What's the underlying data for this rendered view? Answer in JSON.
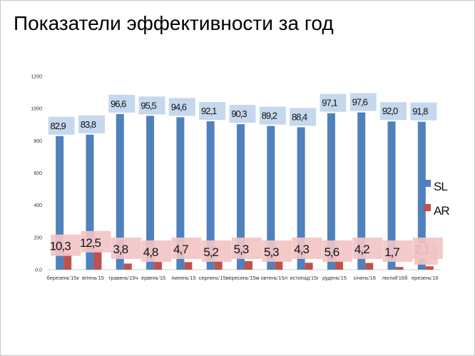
{
  "slide": {
    "title": "Показатели эффективности за год"
  },
  "chart_data": {
    "type": "bar",
    "categories": [
      "березень'15",
      "квітень'15",
      "травень'15",
      "червень'15",
      "липень'15",
      "серпень'15",
      "вересень'15",
      "жовтень'15",
      "листопад'15",
      "грудень'15",
      "січень'16",
      "лютий'16",
      "березень'16"
    ],
    "category_labels": [
      "березень'15к",
      "вітень'15",
      "травень'15ч",
      "ервень'15",
      "липень'15",
      "серпень'15в",
      "ересень'15ж",
      "овтень'15л",
      "истопад'15г",
      "рудень'15",
      "січень'16",
      "лютий'16б",
      "ерезень'16"
    ],
    "yticks": [
      "0,0",
      "200",
      "400",
      "600",
      "800",
      "1000",
      "1200"
    ],
    "ylim": [
      0,
      1200
    ],
    "legend_position": "right",
    "series": [
      {
        "name": "SL",
        "color": "#4f81bd",
        "label_bg": "#c5d8ee",
        "values": [
          829,
          838,
          966,
          955,
          946,
          921,
          903,
          892,
          884,
          971,
          976,
          920,
          918
        ],
        "labels": [
          "82,9",
          "83,8",
          "96,6",
          "95,5",
          "94,6",
          "92,1",
          "90,3",
          "89,2",
          "88,4",
          "97,1",
          "97,6",
          "92,0",
          "91,8"
        ]
      },
      {
        "name": "AR",
        "color": "#c0504d",
        "label_bg": "#f2c4c4",
        "values": [
          103,
          125,
          38,
          48,
          47,
          52,
          53,
          53,
          43,
          56,
          42,
          17,
          21
        ],
        "labels": [
          "10,3",
          "12,5",
          "3,8",
          "4,8",
          "4,7",
          "5,2",
          "5,3",
          "5,3",
          "4,3",
          "5,6",
          "4,2",
          "1,7",
          "2,1"
        ]
      }
    ]
  }
}
